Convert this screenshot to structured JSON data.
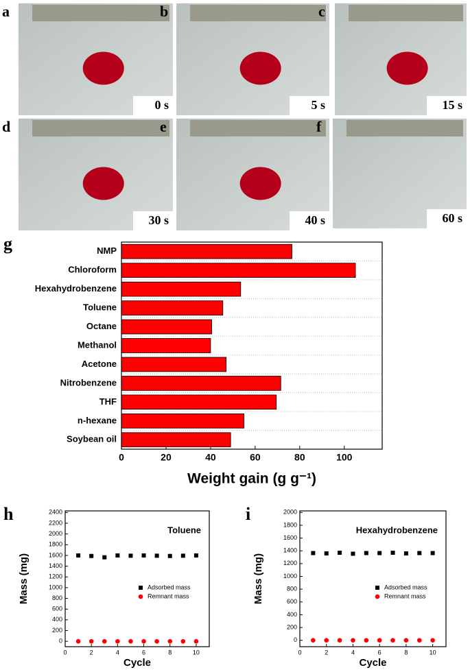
{
  "photos": [
    {
      "label": "a",
      "time": "0 s"
    },
    {
      "label": "b",
      "time": "5 s"
    },
    {
      "label": "c",
      "time": "15 s"
    },
    {
      "label": "d",
      "time": "30 s"
    },
    {
      "label": "e",
      "time": "40 s"
    },
    {
      "label": "f",
      "time": "60 s"
    }
  ],
  "chart_data": [
    {
      "type": "bar",
      "orientation": "horizontal",
      "panel_label": "g",
      "categories": [
        "NMP",
        "Chloroform",
        "Hexahydrobenzene",
        "Toluene",
        "Octane",
        "Methanol",
        "Acetone",
        "Nitrobenzene",
        "THF",
        "n-hexane",
        "Soybean oil"
      ],
      "values": [
        76.5,
        105,
        53.5,
        45.5,
        40.5,
        40,
        47,
        71.5,
        69.5,
        55,
        49
      ],
      "color": "#ff0000",
      "xlabel": "Weight gain (g g⁻¹)",
      "xlim": [
        0,
        117
      ],
      "xticks": [
        0,
        20,
        40,
        60,
        80,
        100
      ]
    },
    {
      "type": "scatter",
      "panel_label": "h",
      "annotation": "Toluene",
      "xlabel": "Cycle",
      "ylabel": "Mass (mg)",
      "x": [
        1,
        2,
        3,
        4,
        5,
        6,
        7,
        8,
        9,
        10
      ],
      "series": [
        {
          "name": "Adsorbed mass",
          "color": "#000000",
          "marker": "square",
          "values": [
            1600,
            1590,
            1565,
            1600,
            1595,
            1600,
            1595,
            1590,
            1595,
            1600
          ]
        },
        {
          "name": "Remnant mass",
          "color": "#ff0000",
          "marker": "circle",
          "values": [
            0,
            0,
            0,
            0,
            0,
            0,
            0,
            0,
            0,
            0
          ]
        }
      ],
      "xlim": [
        0,
        11
      ],
      "xticks": [
        0,
        2,
        4,
        6,
        8,
        10
      ],
      "ylim": [
        -100,
        2430
      ],
      "yticks": [
        0,
        200,
        400,
        600,
        800,
        1000,
        1200,
        1400,
        1600,
        1800,
        2000,
        2200,
        2400
      ]
    },
    {
      "type": "scatter",
      "panel_label": "i",
      "annotation": "Hexahydrobenzene",
      "xlabel": "Cycle",
      "ylabel": "Mass (mg)",
      "x": [
        1,
        2,
        3,
        4,
        5,
        6,
        7,
        8,
        9,
        10
      ],
      "series": [
        {
          "name": "Adsorbed mass",
          "color": "#000000",
          "marker": "square",
          "values": [
            1365,
            1360,
            1370,
            1355,
            1365,
            1365,
            1370,
            1360,
            1365,
            1365
          ]
        },
        {
          "name": "Remnant mass",
          "color": "#ff0000",
          "marker": "circle",
          "values": [
            0,
            0,
            0,
            0,
            0,
            0,
            0,
            0,
            0,
            0
          ]
        }
      ],
      "xlim": [
        0,
        11
      ],
      "xticks": [
        0,
        2,
        4,
        6,
        8,
        10
      ],
      "ylim": [
        -100,
        2025
      ],
      "yticks": [
        0,
        200,
        400,
        600,
        800,
        1000,
        1200,
        1400,
        1600,
        1800,
        2000
      ]
    }
  ]
}
